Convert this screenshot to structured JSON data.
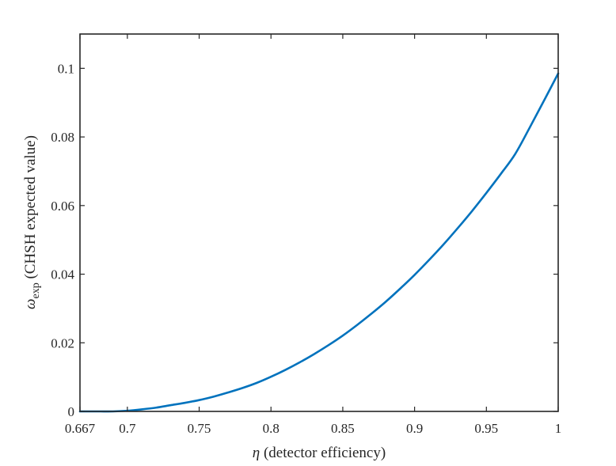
{
  "chart_data": {
    "type": "line",
    "title": "",
    "xlabel": {
      "symbol": "η",
      "text": " (detector efficiency)"
    },
    "ylabel": {
      "symbol": "ω",
      "subscript": "exp",
      "text": " (CHSH expected value)"
    },
    "xlim": [
      0.667,
      1.0
    ],
    "ylim": [
      0,
      0.11
    ],
    "xticks": [
      0.667,
      0.7,
      0.75,
      0.8,
      0.85,
      0.9,
      0.95,
      1
    ],
    "xtick_labels": [
      "0.667",
      "0.7",
      "0.75",
      "0.8",
      "0.85",
      "0.9",
      "0.95",
      "1"
    ],
    "yticks": [
      0,
      0.02,
      0.04,
      0.06,
      0.08,
      0.1
    ],
    "ytick_labels": [
      "0",
      "0.02",
      "0.04",
      "0.06",
      "0.08",
      "0.1"
    ],
    "grid": false,
    "legend": "none",
    "series": [
      {
        "color": "#0072BD",
        "x": [
          0.667,
          0.68,
          0.69,
          0.7,
          0.71,
          0.72,
          0.73,
          0.74,
          0.75,
          0.76,
          0.77,
          0.78,
          0.79,
          0.8,
          0.81,
          0.82,
          0.83,
          0.84,
          0.85,
          0.86,
          0.87,
          0.88,
          0.89,
          0.9,
          0.91,
          0.92,
          0.93,
          0.94,
          0.95,
          0.96,
          0.97,
          0.98,
          0.99,
          1.0
        ],
        "y": [
          0,
          0,
          0,
          0.0002,
          0.0006,
          0.0011,
          0.0018,
          0.0025,
          0.0033,
          0.0043,
          0.0055,
          0.0068,
          0.0083,
          0.0101,
          0.0121,
          0.0143,
          0.0167,
          0.0193,
          0.0221,
          0.0252,
          0.0285,
          0.032,
          0.0358,
          0.0398,
          0.0441,
          0.0486,
          0.0534,
          0.0584,
          0.0637,
          0.0692,
          0.075,
          0.0826,
          0.0905,
          0.0985
        ]
      }
    ]
  }
}
